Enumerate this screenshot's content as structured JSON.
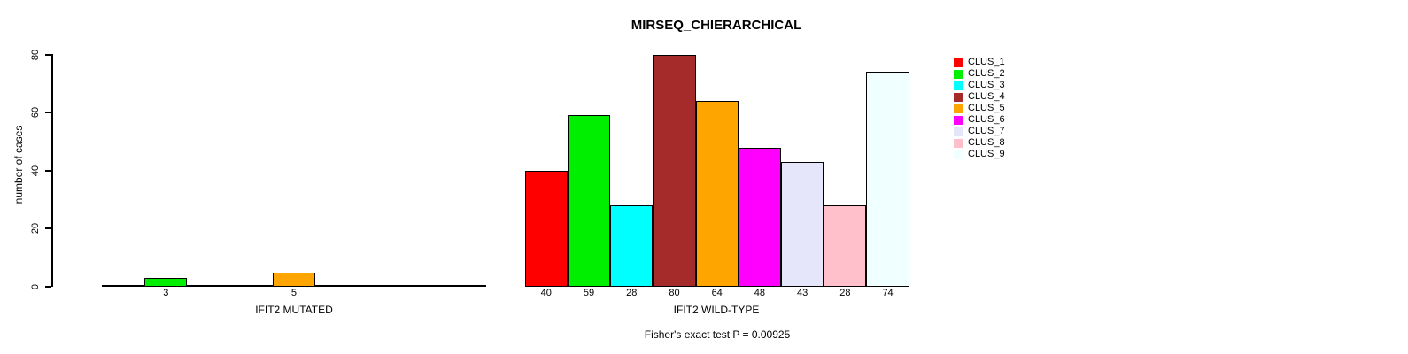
{
  "title": "MIRSEQ_CHIERARCHICAL",
  "chart_data": {
    "type": "bar",
    "title": "MIRSEQ_CHIERARCHICAL",
    "ylabel": "number of cases",
    "ylim": [
      0,
      80
    ],
    "yticks": [
      0,
      20,
      40,
      60,
      80
    ],
    "grid": false,
    "legend_position": "top-right",
    "caption": "Fisher's exact test P = 0.00925",
    "legend": {
      "entries": [
        {
          "label": "CLUS_1",
          "color": "#FF0000"
        },
        {
          "label": "CLUS_2",
          "color": "#00EE00"
        },
        {
          "label": "CLUS_3",
          "color": "#00FFFF"
        },
        {
          "label": "CLUS_4",
          "color": "#A52A2A"
        },
        {
          "label": "CLUS_5",
          "color": "#FFA500"
        },
        {
          "label": "CLUS_6",
          "color": "#FF00FF"
        },
        {
          "label": "CLUS_7",
          "color": "#E6E6FA"
        },
        {
          "label": "CLUS_8",
          "color": "#FFC0CB"
        },
        {
          "label": "CLUS_9",
          "color": "#F0FFFF"
        }
      ]
    },
    "groups": [
      {
        "xlabel": "IFIT2 MUTATED",
        "categories": [
          "CLUS_1",
          "CLUS_2",
          "CLUS_3",
          "CLUS_4",
          "CLUS_5",
          "CLUS_6",
          "CLUS_7",
          "CLUS_8",
          "CLUS_9"
        ],
        "values": [
          0,
          3,
          0,
          0,
          5,
          0,
          0,
          0,
          0
        ],
        "visible_bar_labels": [
          "3",
          "5"
        ]
      },
      {
        "xlabel": "IFIT2 WILD-TYPE",
        "categories": [
          "CLUS_1",
          "CLUS_2",
          "CLUS_3",
          "CLUS_4",
          "CLUS_5",
          "CLUS_6",
          "CLUS_7",
          "CLUS_8",
          "CLUS_9"
        ],
        "values": [
          40,
          59,
          28,
          80,
          64,
          48,
          43,
          28,
          74
        ],
        "visible_bar_labels": [
          "40",
          "59",
          "28",
          "80",
          "64",
          "48",
          "43",
          "28",
          "74"
        ]
      }
    ]
  }
}
